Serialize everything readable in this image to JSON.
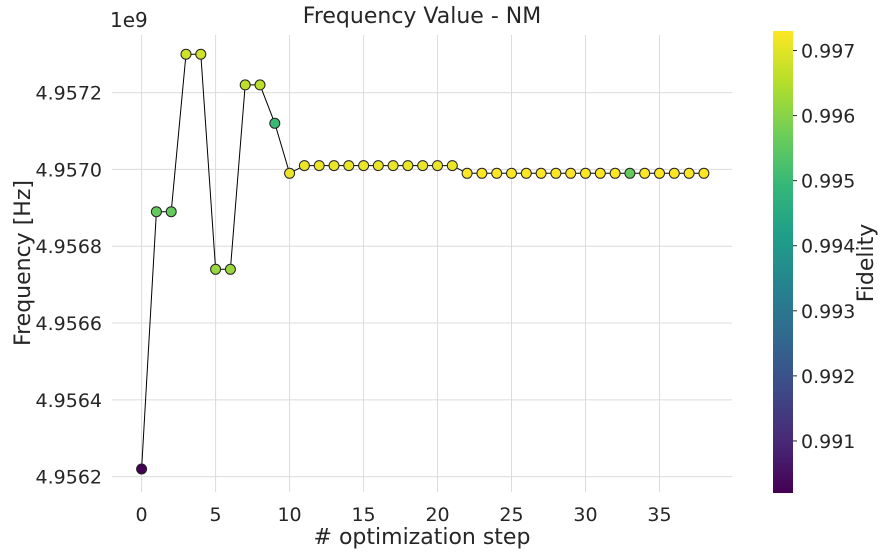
{
  "chart_data": {
    "type": "scatter",
    "title": "Frequency Value - NM",
    "xlabel": "# optimization step",
    "ylabel": "Frequency [Hz]",
    "y_offset_label": "1e9",
    "colorbar_label": "Fidelity",
    "colormap": "viridis",
    "xlim": [
      -2.0,
      39.9
    ],
    "ylim": [
      4.95616,
      4.95735
    ],
    "x_ticks": [
      "0",
      "5",
      "10",
      "15",
      "20",
      "25",
      "30",
      "35"
    ],
    "y_ticks": [
      "4.9562",
      "4.9564",
      "4.9566",
      "4.9568",
      "4.9570",
      "4.9572"
    ],
    "colorbar_ticks": [
      "0.991",
      "0.992",
      "0.993",
      "0.994",
      "0.995",
      "0.996",
      "0.997"
    ],
    "colorbar_range": [
      0.9902,
      0.9973
    ],
    "grid": true,
    "line_color": "#000000",
    "points": [
      {
        "x": 0,
        "y": 4.95622,
        "fidelity": 0.9902
      },
      {
        "x": 1,
        "y": 4.95689,
        "fidelity": 0.9956
      },
      {
        "x": 2,
        "y": 4.95689,
        "fidelity": 0.9956
      },
      {
        "x": 3,
        "y": 4.9573,
        "fidelity": 0.9968
      },
      {
        "x": 4,
        "y": 4.9573,
        "fidelity": 0.9968
      },
      {
        "x": 5,
        "y": 4.95674,
        "fidelity": 0.9962
      },
      {
        "x": 6,
        "y": 4.95674,
        "fidelity": 0.9962
      },
      {
        "x": 7,
        "y": 4.95722,
        "fidelity": 0.9966
      },
      {
        "x": 8,
        "y": 4.95722,
        "fidelity": 0.9966
      },
      {
        "x": 9,
        "y": 4.95712,
        "fidelity": 0.995
      },
      {
        "x": 10,
        "y": 4.95699,
        "fidelity": 0.9971
      },
      {
        "x": 11,
        "y": 4.95701,
        "fidelity": 0.9971
      },
      {
        "x": 12,
        "y": 4.95701,
        "fidelity": 0.9971
      },
      {
        "x": 13,
        "y": 4.95701,
        "fidelity": 0.9971
      },
      {
        "x": 14,
        "y": 4.95701,
        "fidelity": 0.9971
      },
      {
        "x": 15,
        "y": 4.95701,
        "fidelity": 0.9971
      },
      {
        "x": 16,
        "y": 4.95701,
        "fidelity": 0.9971
      },
      {
        "x": 17,
        "y": 4.95701,
        "fidelity": 0.9971
      },
      {
        "x": 18,
        "y": 4.95701,
        "fidelity": 0.9971
      },
      {
        "x": 19,
        "y": 4.95701,
        "fidelity": 0.9971
      },
      {
        "x": 20,
        "y": 4.95701,
        "fidelity": 0.9971
      },
      {
        "x": 21,
        "y": 4.95701,
        "fidelity": 0.9971
      },
      {
        "x": 22,
        "y": 4.95699,
        "fidelity": 0.9973
      },
      {
        "x": 23,
        "y": 4.95699,
        "fidelity": 0.9973
      },
      {
        "x": 24,
        "y": 4.95699,
        "fidelity": 0.9973
      },
      {
        "x": 25,
        "y": 4.95699,
        "fidelity": 0.9973
      },
      {
        "x": 26,
        "y": 4.95699,
        "fidelity": 0.9973
      },
      {
        "x": 27,
        "y": 4.95699,
        "fidelity": 0.9973
      },
      {
        "x": 28,
        "y": 4.95699,
        "fidelity": 0.9973
      },
      {
        "x": 29,
        "y": 4.95699,
        "fidelity": 0.9973
      },
      {
        "x": 30,
        "y": 4.95699,
        "fidelity": 0.9973
      },
      {
        "x": 31,
        "y": 4.95699,
        "fidelity": 0.9973
      },
      {
        "x": 32,
        "y": 4.95699,
        "fidelity": 0.9973
      },
      {
        "x": 33,
        "y": 4.95699,
        "fidelity": 0.9956
      },
      {
        "x": 34,
        "y": 4.95699,
        "fidelity": 0.9973
      },
      {
        "x": 35,
        "y": 4.95699,
        "fidelity": 0.9973
      },
      {
        "x": 36,
        "y": 4.95699,
        "fidelity": 0.9973
      },
      {
        "x": 37,
        "y": 4.95699,
        "fidelity": 0.9973
      },
      {
        "x": 38,
        "y": 4.95699,
        "fidelity": 0.9973
      }
    ]
  }
}
